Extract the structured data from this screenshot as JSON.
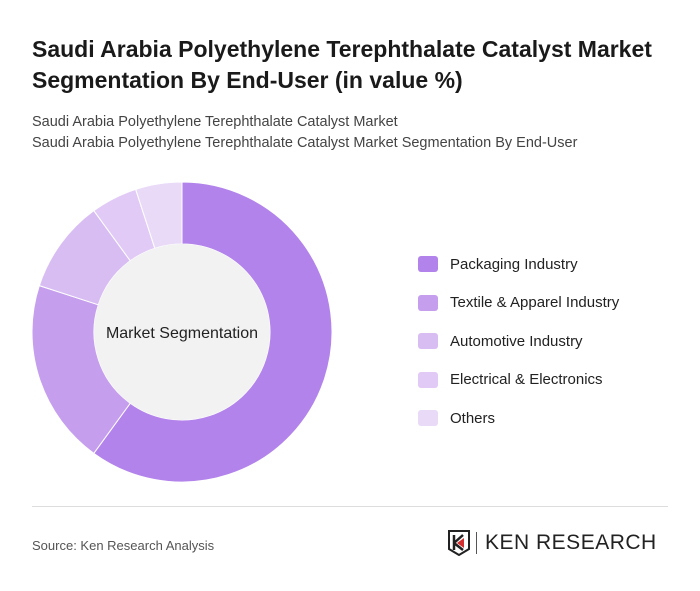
{
  "title": "Saudi Arabia Polyethylene Terephthalate Catalyst Market Segmentation By End-User (in value %)",
  "subtitle1": "Saudi Arabia Polyethylene Terephthalate Catalyst Market",
  "subtitle2": "Saudi Arabia Polyethylene Terephthalate Catalyst Market Segmentation By End-User",
  "chart_data": {
    "type": "pie",
    "variant": "donut",
    "center_label": "Market Segmentation",
    "categories": [
      "Packaging Industry",
      "Textile & Apparel Industry",
      "Automotive Industry",
      "Electrical & Electronics",
      "Others"
    ],
    "values": [
      60,
      20,
      10,
      5,
      5
    ],
    "colors": [
      "#b283ea",
      "#c59eee",
      "#d8bdf3",
      "#e1caf5",
      "#e9daf8"
    ],
    "legend_position": "right"
  },
  "source": "Source: Ken Research Analysis",
  "logo_text": "KEN RESEARCH"
}
